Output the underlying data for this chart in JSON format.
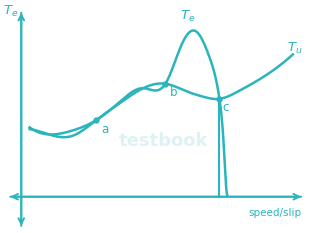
{
  "curve_color": "#2ab5bd",
  "background_color": "#ffffff",
  "axis_label_Te": "T_e",
  "axis_label_speed": "speed/slip",
  "label_Te_curve": "T_e",
  "label_Tu_curve": "T_u",
  "label_a": "a",
  "label_b": "b",
  "label_c": "c",
  "watermark_color": "#d0ecf0",
  "xlim": [
    -0.07,
    1.05
  ],
  "ylim": [
    -0.2,
    1.08
  ]
}
